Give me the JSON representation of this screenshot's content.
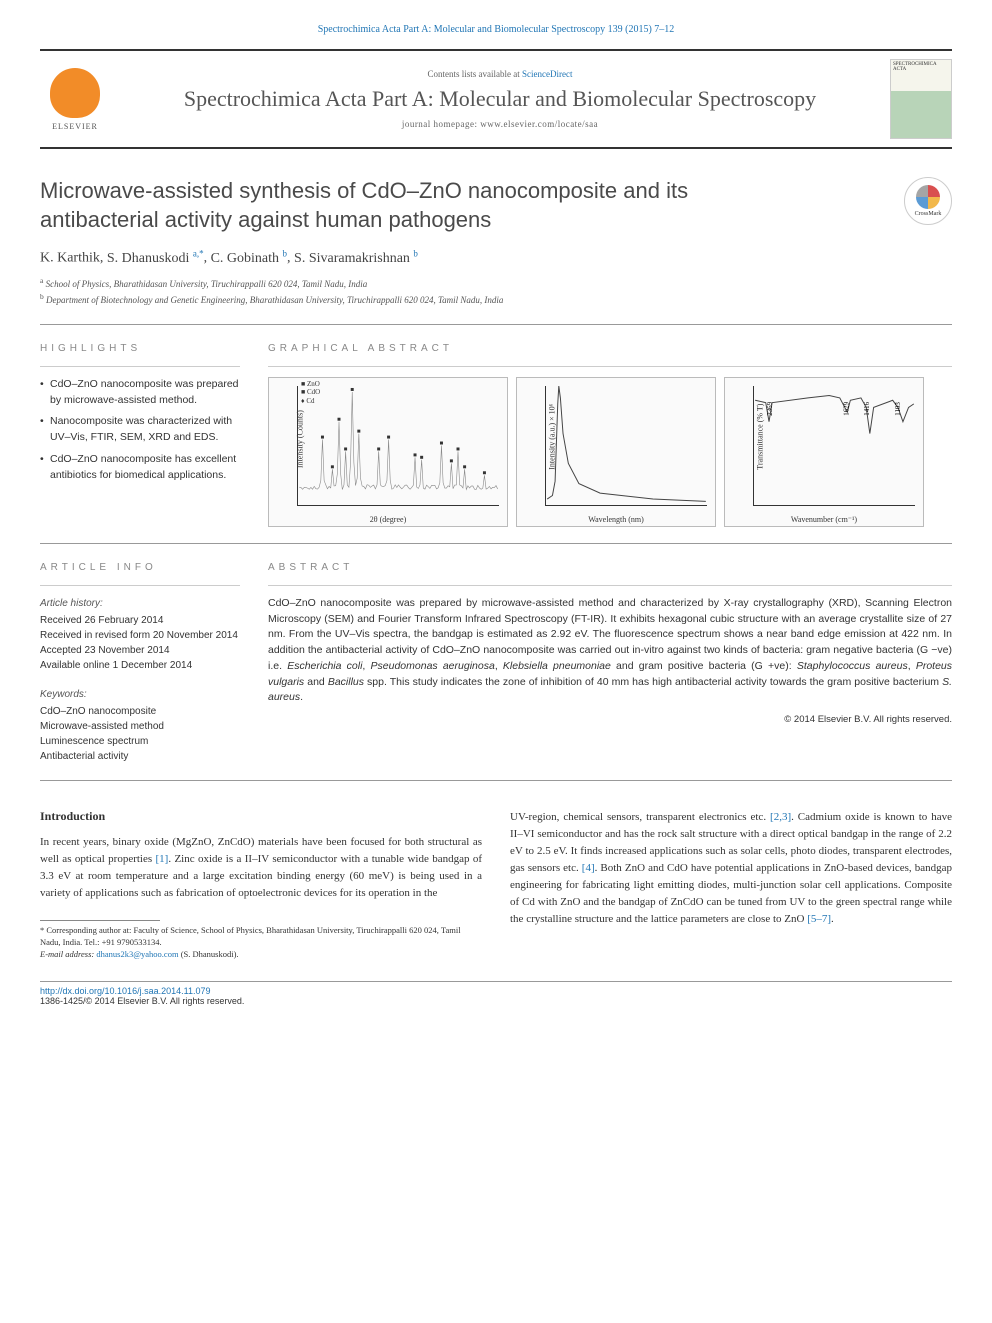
{
  "header": {
    "citation": "Spectrochimica Acta Part A: Molecular and Biomolecular Spectroscopy 139 (2015) 7–12",
    "elsevier_label": "ELSEVIER",
    "contents_prefix": "Contents lists available at ",
    "contents_link": "ScienceDirect",
    "journal_name": "Spectrochimica Acta Part A: Molecular and Biomolecular Spectroscopy",
    "homepage_prefix": "journal homepage: ",
    "homepage_url": "www.elsevier.com/locate/saa",
    "cover_label": "SPECTROCHIMICA ACTA"
  },
  "title": "Microwave-assisted synthesis of CdO–ZnO nanocomposite and its antibacterial activity against human pathogens",
  "crossmark_label": "CrossMark",
  "authors": [
    {
      "name": "K. Karthik",
      "aff": ""
    },
    {
      "name": "S. Dhanuskodi",
      "aff": "a,*"
    },
    {
      "name": "C. Gobinath",
      "aff": "b"
    },
    {
      "name": "S. Sivaramakrishnan",
      "aff": "b"
    }
  ],
  "affiliations": [
    {
      "mark": "a",
      "text": "School of Physics, Bharathidasan University, Tiruchirappalli 620 024, Tamil Nadu, India"
    },
    {
      "mark": "b",
      "text": "Department of Biotechnology and Genetic Engineering, Bharathidasan University, Tiruchirappalli 620 024, Tamil Nadu, India"
    }
  ],
  "highlights_label": "HIGHLIGHTS",
  "highlights": [
    "CdO–ZnO nanocomposite was prepared by microwave-assisted method.",
    "Nanocomposite was characterized with UV–Vis, FTIR, SEM, XRD and EDS.",
    "CdO–ZnO nanocomposite has excellent antibiotics for biomedical applications."
  ],
  "graphical_label": "GRAPHICAL ABSTRACT",
  "graphical": {
    "panel1": {
      "y_label": "Intensity (Counts)",
      "x_label": "2θ (degree)",
      "legend": [
        "■ ZnO",
        "■ CdO",
        "♦ Cd"
      ],
      "xlim": [
        20,
        80
      ],
      "peaks": [
        27,
        30,
        32,
        34,
        36,
        38,
        44,
        47,
        55,
        57,
        63,
        66,
        68,
        70,
        76
      ],
      "peak_heights": [
        55,
        30,
        70,
        45,
        95,
        60,
        45,
        55,
        40,
        38,
        50,
        35,
        45,
        30,
        25
      ],
      "baseline": 15,
      "line_color": "#6a6a6a",
      "background": "#fafafa"
    },
    "panel2": {
      "y_label": "Intensity (a.u.) × 10⁶",
      "x_label": "Wavelength (nm)",
      "xlim": [
        400,
        700
      ],
      "xticks": [
        400,
        450,
        500,
        550,
        600,
        650,
        700
      ],
      "peak_x": 422,
      "curve": [
        [
          400,
          5
        ],
        [
          410,
          8
        ],
        [
          415,
          20
        ],
        [
          420,
          85
        ],
        [
          422,
          100
        ],
        [
          425,
          90
        ],
        [
          430,
          60
        ],
        [
          440,
          35
        ],
        [
          460,
          18
        ],
        [
          500,
          10
        ],
        [
          600,
          5
        ],
        [
          700,
          3
        ]
      ],
      "line_color": "#444444"
    },
    "panel3": {
      "y_label": "Transmittance (% T)",
      "x_label": "Wavenumber (cm⁻¹)",
      "xlim": [
        2500,
        1000
      ],
      "labels": [
        "2369",
        "1629",
        "1416",
        "1103"
      ],
      "curve": [
        [
          2500,
          88
        ],
        [
          2400,
          86
        ],
        [
          2369,
          70
        ],
        [
          2340,
          86
        ],
        [
          2000,
          90
        ],
        [
          1800,
          92
        ],
        [
          1700,
          90
        ],
        [
          1629,
          78
        ],
        [
          1600,
          88
        ],
        [
          1500,
          90
        ],
        [
          1450,
          82
        ],
        [
          1416,
          60
        ],
        [
          1380,
          82
        ],
        [
          1200,
          88
        ],
        [
          1150,
          82
        ],
        [
          1103,
          70
        ],
        [
          1050,
          82
        ],
        [
          1000,
          85
        ]
      ],
      "line_color": "#444444"
    }
  },
  "article_info_label": "ARTICLE INFO",
  "article_history_heading": "Article history:",
  "article_history": [
    "Received 26 February 2014",
    "Received in revised form 20 November 2014",
    "Accepted 23 November 2014",
    "Available online 1 December 2014"
  ],
  "keywords_heading": "Keywords:",
  "keywords": [
    "CdO–ZnO nanocomposite",
    "Microwave-assisted method",
    "Luminescence spectrum",
    "Antibacterial activity"
  ],
  "abstract_label": "ABSTRACT",
  "abstract_text": "CdO–ZnO nanocomposite was prepared by microwave-assisted method and characterized by X-ray crystallography (XRD), Scanning Electron Microscopy (SEM) and Fourier Transform Infrared Spectroscopy (FT-IR). It exhibits hexagonal cubic structure with an average crystallite size of 27 nm. From the UV–Vis spectra, the bandgap is estimated as 2.92 eV. The fluorescence spectrum shows a near band edge emission at 422 nm. In addition the antibacterial activity of CdO–ZnO nanocomposite was carried out in-vitro against two kinds of bacteria: gram negative bacteria (G −ve) i.e. Escherichia coli, Pseudomonas aeruginosa, Klebsiella pneumoniae and gram positive bacteria (G +ve): Staphylococcus aureus, Proteus vulgaris and Bacillus spp. This study indicates the zone of inhibition of 40 mm has high antibacterial activity towards the gram positive bacterium S. aureus.",
  "copyright": "© 2014 Elsevier B.V. All rights reserved.",
  "intro_heading": "Introduction",
  "intro_col1": "In recent years, binary oxide (MgZnO, ZnCdO) materials have been focused for both structural as well as optical properties [1]. Zinc oxide is a II–IV semiconductor with a tunable wide bandgap of 3.3 eV at room temperature and a large excitation binding energy (60 meV) is being used in a variety of applications such as fabrication of optoelectronic devices for its operation in the",
  "intro_col2": "UV-region, chemical sensors, transparent electronics etc. [2,3]. Cadmium oxide is known to have II–VI semiconductor and has the rock salt structure with a direct optical bandgap in the range of 2.2 eV to 2.5 eV. It finds increased applications such as solar cells, photo diodes, transparent electrodes, gas sensors etc. [4]. Both ZnO and CdO have potential applications in ZnO-based devices, bandgap engineering for fabricating light emitting diodes, multi-junction solar cell applications. Composite of Cd with ZnO and the bandgap of ZnCdO can be tuned from UV to the green spectral range while the crystalline structure and the lattice parameters are close to ZnO [5–7].",
  "intro_refs_col1": [
    "[1]"
  ],
  "intro_refs_col2": [
    "[2,3]",
    "[4]",
    "[5–7]"
  ],
  "footnote": {
    "marker": "*",
    "text": "Corresponding author at: Faculty of Science, School of Physics, Bharathidasan University, Tiruchirappalli 620 024, Tamil Nadu, India. Tel.: +91 9790533134.",
    "email_label": "E-mail address:",
    "email": "dhanus2k3@yahoo.com",
    "email_suffix": "(S. Dhanuskodi)."
  },
  "footer": {
    "doi": "http://dx.doi.org/10.1016/j.saa.2014.11.079",
    "issn_line": "1386-1425/© 2014 Elsevier B.V. All rights reserved."
  },
  "colors": {
    "link": "#2176b5",
    "text": "#333333",
    "rule": "#999999",
    "elsevier_orange": "#f28c28"
  }
}
